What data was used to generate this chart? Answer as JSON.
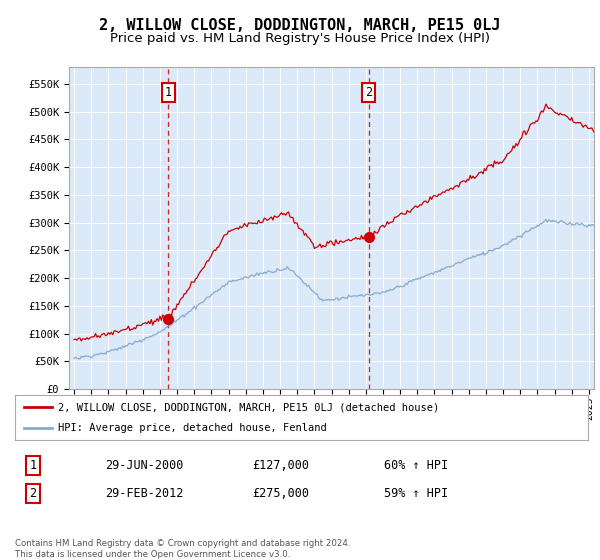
{
  "title": "2, WILLOW CLOSE, DODDINGTON, MARCH, PE15 0LJ",
  "subtitle": "Price paid vs. HM Land Registry's House Price Index (HPI)",
  "title_fontsize": 11,
  "subtitle_fontsize": 9.5,
  "ylabel_ticks": [
    "£0",
    "£50K",
    "£100K",
    "£150K",
    "£200K",
    "£250K",
    "£300K",
    "£350K",
    "£400K",
    "£450K",
    "£500K",
    "£550K"
  ],
  "ytick_values": [
    0,
    50000,
    100000,
    150000,
    200000,
    250000,
    300000,
    350000,
    400000,
    450000,
    500000,
    550000
  ],
  "ylim": [
    0,
    580000
  ],
  "xlim_start": 1994.7,
  "xlim_end": 2025.3,
  "background_color": "#dce9f8",
  "fig_bg_color": "#ffffff",
  "red_line_color": "#cc0000",
  "blue_line_color": "#88aacc",
  "sale1_x": 2000.49,
  "sale1_y": 127000,
  "sale1_label": "1",
  "sale2_x": 2012.16,
  "sale2_y": 275000,
  "sale2_label": "2",
  "legend_line1": "2, WILLOW CLOSE, DODDINGTON, MARCH, PE15 0LJ (detached house)",
  "legend_line2": "HPI: Average price, detached house, Fenland",
  "table_row1_num": "1",
  "table_row1_date": "29-JUN-2000",
  "table_row1_price": "£127,000",
  "table_row1_hpi": "60% ↑ HPI",
  "table_row2_num": "2",
  "table_row2_date": "29-FEB-2012",
  "table_row2_price": "£275,000",
  "table_row2_hpi": "59% ↑ HPI",
  "footer": "Contains HM Land Registry data © Crown copyright and database right 2024.\nThis data is licensed under the Open Government Licence v3.0."
}
